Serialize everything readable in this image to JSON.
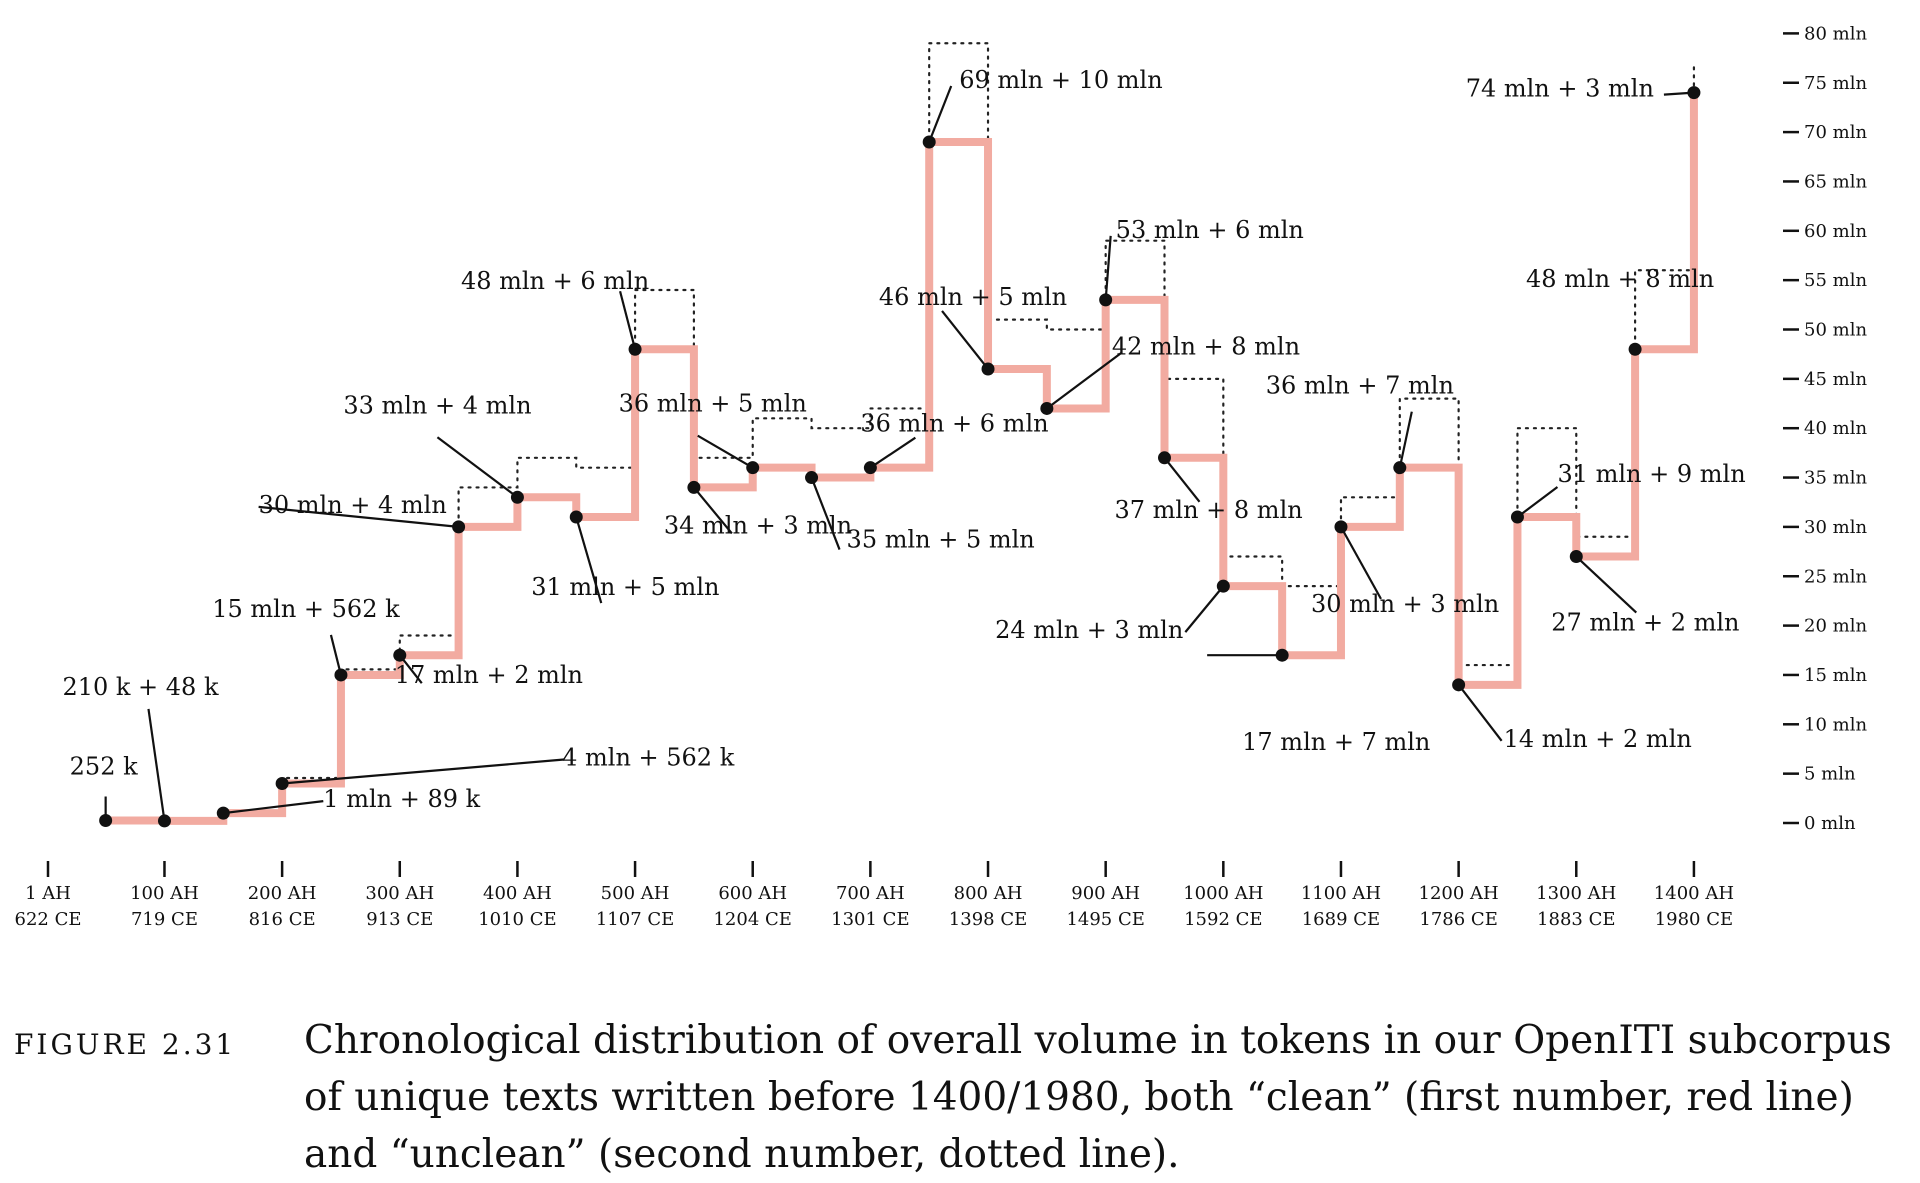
{
  "chart_data": {
    "type": "line",
    "ylim": [
      0,
      80
    ],
    "y_unit": "mln",
    "y_ticks": [
      "0 mln",
      "5 mln",
      "10 mln",
      "15 mln",
      "20 mln",
      "25 mln",
      "30 mln",
      "35 mln",
      "40 mln",
      "45 mln",
      "50 mln",
      "55 mln",
      "60 mln",
      "65 mln",
      "70 mln",
      "75 mln",
      "80 mln"
    ],
    "x_ticks": [
      {
        "ah": "1 AH",
        "ce": "622 CE"
      },
      {
        "ah": "100 AH",
        "ce": "719 CE"
      },
      {
        "ah": "200 AH",
        "ce": "816 CE"
      },
      {
        "ah": "300 AH",
        "ce": "913 CE"
      },
      {
        "ah": "400 AH",
        "ce": "1010 CE"
      },
      {
        "ah": "500 AH",
        "ce": "1107 CE"
      },
      {
        "ah": "600 AH",
        "ce": "1204 CE"
      },
      {
        "ah": "700 AH",
        "ce": "1301 CE"
      },
      {
        "ah": "800 AH",
        "ce": "1398 CE"
      },
      {
        "ah": "900 AH",
        "ce": "1495 CE"
      },
      {
        "ah": "1000 AH",
        "ce": "1592 CE"
      },
      {
        "ah": "1100 AH",
        "ce": "1689 CE"
      },
      {
        "ah": "1200 AH",
        "ce": "1786 CE"
      },
      {
        "ah": "1300 AH",
        "ce": "1883 CE"
      },
      {
        "ah": "1400 AH",
        "ce": "1980 CE"
      }
    ],
    "series": [
      {
        "name": "clean",
        "style": "red line",
        "color": "#f2aba1"
      },
      {
        "name": "unclean",
        "style": "dotted line",
        "color": "#222222"
      }
    ],
    "points": [
      {
        "x": 50,
        "clean": 0.252,
        "unclean": 0.252,
        "label": "252 k"
      },
      {
        "x": 100,
        "clean": 0.21,
        "unclean": 0.258,
        "label": "210 k + 48 k"
      },
      {
        "x": 150,
        "clean": 1.0,
        "unclean": 1.089,
        "label": "1 mln + 89 k"
      },
      {
        "x": 200,
        "clean": 4.0,
        "unclean": 4.562,
        "label": "4 mln + 562 k"
      },
      {
        "x": 250,
        "clean": 15.0,
        "unclean": 15.562,
        "label": "15 mln + 562 k"
      },
      {
        "x": 300,
        "clean": 17.0,
        "unclean": 19.0,
        "label": "17 mln + 2 mln"
      },
      {
        "x": 350,
        "clean": 30.0,
        "unclean": 34.0,
        "label": "30 mln + 4 mln"
      },
      {
        "x": 400,
        "clean": 33.0,
        "unclean": 37.0,
        "label": "33 mln + 4 mln"
      },
      {
        "x": 450,
        "clean": 31.0,
        "unclean": 36.0,
        "label": "31 mln + 5 mln"
      },
      {
        "x": 500,
        "clean": 48.0,
        "unclean": 54.0,
        "label": "48 mln + 6 mln"
      },
      {
        "x": 550,
        "clean": 34.0,
        "unclean": 37.0,
        "label": "34 mln + 3 mln"
      },
      {
        "x": 600,
        "clean": 36.0,
        "unclean": 41.0,
        "label": "36 mln + 5 mln"
      },
      {
        "x": 650,
        "clean": 35.0,
        "unclean": 40.0,
        "label": "35 mln + 5 mln"
      },
      {
        "x": 700,
        "clean": 36.0,
        "unclean": 42.0,
        "label": "36 mln + 6 mln"
      },
      {
        "x": 750,
        "clean": 69.0,
        "unclean": 79.0,
        "label": "69 mln + 10 mln"
      },
      {
        "x": 800,
        "clean": 46.0,
        "unclean": 51.0,
        "label": "46 mln + 5 mln"
      },
      {
        "x": 850,
        "clean": 42.0,
        "unclean": 50.0,
        "label": "42 mln + 8 mln"
      },
      {
        "x": 900,
        "clean": 53.0,
        "unclean": 59.0,
        "label": "53 mln + 6 mln"
      },
      {
        "x": 950,
        "clean": 37.0,
        "unclean": 45.0,
        "label": "37 mln + 8 mln"
      },
      {
        "x": 1000,
        "clean": 24.0,
        "unclean": 27.0,
        "label": "24 mln + 3 mln"
      },
      {
        "x": 1050,
        "clean": 17.0,
        "unclean": 24.0,
        "label": "17 mln + 7 mln"
      },
      {
        "x": 1100,
        "clean": 30.0,
        "unclean": 33.0,
        "label": "30 mln + 3 mln"
      },
      {
        "x": 1150,
        "clean": 36.0,
        "unclean": 43.0,
        "label": "36 mln + 7 mln"
      },
      {
        "x": 1200,
        "clean": 14.0,
        "unclean": 16.0,
        "label": "14 mln + 2 mln"
      },
      {
        "x": 1250,
        "clean": 31.0,
        "unclean": 40.0,
        "label": "31 mln + 9 mln"
      },
      {
        "x": 1300,
        "clean": 27.0,
        "unclean": 29.0,
        "label": "27 mln + 2 mln"
      },
      {
        "x": 1350,
        "clean": 48.0,
        "unclean": 56.0,
        "label": "48 mln + 8 mln"
      },
      {
        "x": 1400,
        "clean": 74.0,
        "unclean": 77.0,
        "label": "74 mln + 3 mln"
      }
    ]
  },
  "caption": {
    "label": "FIGURE 2.31",
    "text": "Chronological distribution of overall volume in tokens in our OpenITI subcorpus of unique texts written before 1400/1980, both “clean” (first number, red line) and “unclean” (second number, dotted line)."
  }
}
